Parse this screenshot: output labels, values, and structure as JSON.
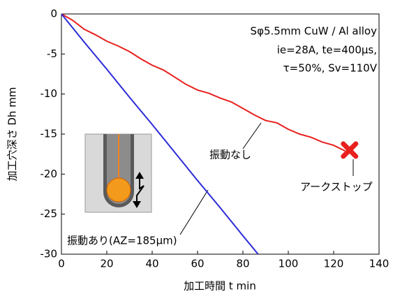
{
  "chart_data": {
    "type": "line",
    "xlabel": "加工時間 t min",
    "ylabel": "加工穴深さ Dh mm",
    "annotations": [
      "Sφ5.5mm CuW / Al alloy",
      "ie=28A, te=400μs,",
      "τ=50%, Sv=110V"
    ],
    "xlim": [
      0,
      140
    ],
    "xticks": [
      0,
      20,
      40,
      60,
      80,
      100,
      120,
      140
    ],
    "ylim": [
      -30,
      0
    ],
    "yticks": [
      0,
      -5,
      -10,
      -15,
      -20,
      -25,
      -30
    ],
    "series": [
      {
        "name": "振動なし",
        "color": "#e8201e",
        "x": [
          0,
          5,
          10,
          15,
          20,
          25,
          30,
          35,
          40,
          45,
          50,
          55,
          60,
          65,
          70,
          75,
          80,
          85,
          90,
          95,
          100,
          105,
          110,
          115,
          120,
          125
        ],
        "values": [
          0,
          -0.8,
          -1.9,
          -2.6,
          -3.4,
          -4.0,
          -4.7,
          -5.6,
          -6.4,
          -7.0,
          -7.9,
          -8.8,
          -9.5,
          -9.9,
          -10.5,
          -11.0,
          -11.8,
          -12.6,
          -13.3,
          -13.6,
          -14.4,
          -15.0,
          -15.4,
          -16.0,
          -16.4,
          -17.1
        ]
      },
      {
        "name": "振動あり(AZ=185μm)",
        "color": "#2b2bd6",
        "x": [
          0,
          10,
          20,
          30,
          40,
          50,
          60,
          70,
          80,
          86.7
        ],
        "values": [
          0,
          -3.5,
          -6.9,
          -10.4,
          -13.8,
          -17.3,
          -20.8,
          -24.2,
          -27.7,
          -30
        ]
      }
    ],
    "marker": {
      "label": "アークストップ",
      "x": 127,
      "y": -17,
      "color": "#e8201e"
    }
  }
}
